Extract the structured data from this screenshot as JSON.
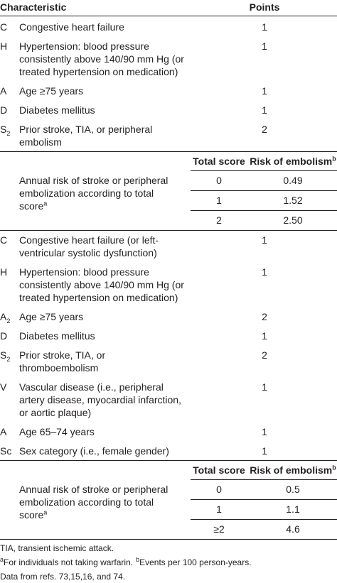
{
  "header": {
    "characteristic": "Characteristic",
    "points": "Points"
  },
  "sections": [
    {
      "items": [
        {
          "letter": "C",
          "text": [
            "Congestive heart failure"
          ],
          "points": "1"
        },
        {
          "letter": "H",
          "text": [
            "Hypertension: blood pressure",
            "consistently above 140/90 mm Hg (or",
            "treated hypertension on medication)"
          ],
          "points": "1"
        },
        {
          "letter": "A",
          "text": [
            "Age ≥75 years"
          ],
          "points": "1"
        },
        {
          "letter": "D",
          "text": [
            "Diabetes mellitus"
          ],
          "points": "1"
        },
        {
          "letter": "S",
          "sub": "2",
          "text": [
            "Prior stroke, TIA, or peripheral",
            "embolism"
          ],
          "points": "2"
        }
      ],
      "risk": {
        "total_score": "Total score",
        "risk": "Risk of embolism",
        "risk_note": "b",
        "label": [
          "Annual risk of stroke or peripheral",
          "embolization according to total",
          "score"
        ],
        "label_note": "a",
        "rows": [
          [
            "0",
            "0.49"
          ],
          [
            "1",
            "1.52"
          ],
          [
            "2",
            "2.50"
          ]
        ]
      }
    },
    {
      "items": [
        {
          "letter": "C",
          "text": [
            "Congestive heart failure (or left-",
            "ventricular systolic dysfunction)"
          ],
          "points": "1"
        },
        {
          "letter": "H",
          "text": [
            "Hypertension: blood pressure",
            "consistently above 140/90 mm Hg (or",
            "treated hypertension on medication)"
          ],
          "points": "1"
        },
        {
          "letter": "A",
          "sub": "2",
          "text": [
            "Age ≥75 years"
          ],
          "points": "2"
        },
        {
          "letter": "D",
          "text": [
            "Diabetes mellitus"
          ],
          "points": "1"
        },
        {
          "letter": "S",
          "sub": "2",
          "text": [
            "Prior stroke, TIA, or",
            "thromboembolism"
          ],
          "points": "2"
        },
        {
          "letter": "V",
          "text": [
            "Vascular disease (i.e., peripheral",
            "artery disease, myocardial infarction,",
            "or aortic plaque)"
          ],
          "points": "1"
        },
        {
          "letter": "A",
          "text": [
            "Age 65–74 years"
          ],
          "points": "1"
        },
        {
          "letter": "Sc",
          "text": [
            "Sex category (i.e., female gender)"
          ],
          "points": "1"
        }
      ],
      "risk": {
        "total_score": "Total score",
        "risk": "Risk of embolism",
        "risk_note": "b",
        "label": [
          "Annual risk of stroke or peripheral",
          "embolization according to total",
          "score"
        ],
        "label_note": "a",
        "rows": [
          [
            "0",
            "0.5"
          ],
          [
            "1",
            "1.1"
          ],
          [
            "≥2",
            "4.6"
          ]
        ]
      }
    }
  ],
  "footnotes": {
    "abbreviation": "TIA, transient ischemic attack.",
    "note_a": "a",
    "text_a": "For individuals not taking warfarin.",
    "note_b": "b",
    "text_b": "Events per 100 person-years.",
    "source": "Data from refs. 73,15,16, and 74."
  }
}
